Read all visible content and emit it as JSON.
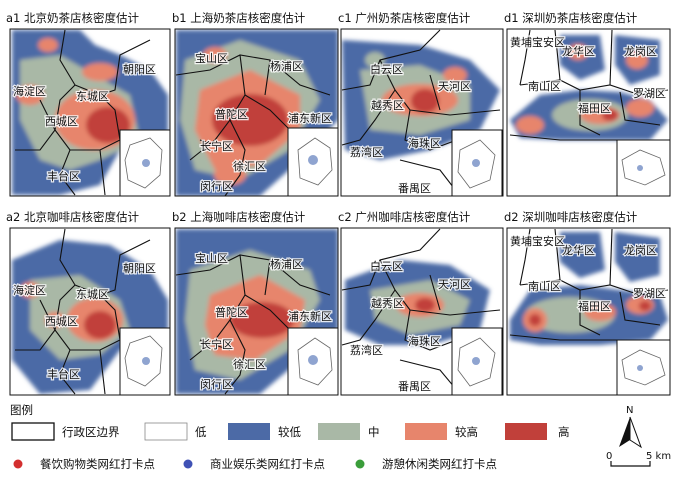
{
  "panels": [
    {
      "id": "a1",
      "title": "a1 北京奶茶店核密度估计",
      "districts": [
        "朝阳区",
        "海淀区",
        "西城区",
        "东城区",
        "丰台区"
      ]
    },
    {
      "id": "b1",
      "title": "b1 上海奶茶店核密度估计",
      "districts": [
        "宝山区",
        "杨浦区",
        "普陀区",
        "浦东新区",
        "长宁区",
        "徐汇区",
        "闵行区"
      ]
    },
    {
      "id": "c1",
      "title": "c1 广州奶茶店核密度估计",
      "districts": [
        "白云区",
        "天河区",
        "越秀区",
        "海珠区",
        "荔湾区",
        "番禺区"
      ]
    },
    {
      "id": "d1",
      "title": "d1 深圳奶茶店核密度估计",
      "districts": [
        "黄埔区",
        "宝安区",
        "龙华区",
        "龙岗区",
        "南山区",
        "福田区",
        "罗湖区"
      ]
    },
    {
      "id": "a2",
      "title": "a2 北京咖啡店核密度估计",
      "districts": [
        "朝阳区",
        "海淀区",
        "西城区",
        "东城区",
        "丰台区"
      ]
    },
    {
      "id": "b2",
      "title": "b2 上海咖啡店核密度估计",
      "districts": [
        "宝山区",
        "杨浦区",
        "普陀区",
        "浦东新区",
        "长宁区",
        "徐汇区",
        "闵行区"
      ]
    },
    {
      "id": "c2",
      "title": "c2 广州咖啡店核密度估计",
      "districts": [
        "白云区",
        "天河区",
        "越秀区",
        "海珠区",
        "荔湾区",
        "番禺区"
      ]
    },
    {
      "id": "d2",
      "title": "d2 深圳咖啡店核密度估计",
      "districts": [
        "黄埔区",
        "宝安区",
        "龙华区",
        "龙岗区",
        "南山区",
        "福田区",
        "罗湖区"
      ]
    }
  ],
  "legend": {
    "title": "图例",
    "items": [
      {
        "key": "boundary",
        "label": "行政区边界",
        "color": "#ffffff"
      },
      {
        "key": "low",
        "label": "低",
        "color": "#ffffff"
      },
      {
        "key": "lowish",
        "label": "较低",
        "color": "#4c6aa6"
      },
      {
        "key": "mid",
        "label": "中",
        "color": "#a9b8a6"
      },
      {
        "key": "highish",
        "label": "较高",
        "color": "#e7856c"
      },
      {
        "key": "high",
        "label": "高",
        "color": "#c1403a"
      }
    ],
    "points": [
      {
        "label": "餐饮购物类网红打卡点",
        "color": "#d32f2f"
      },
      {
        "label": "商业娱乐类网红打卡点",
        "color": "#3f51b5"
      },
      {
        "label": "游憩休闲类网红打卡点",
        "color": "#3a9d3a"
      }
    ]
  },
  "north": "N",
  "scale": {
    "start": "0",
    "end": "5 km"
  },
  "colors": {
    "lowish": "#4c6aa6",
    "mid": "#a9b8a6",
    "highish": "#e7856c",
    "high": "#c1403a"
  }
}
